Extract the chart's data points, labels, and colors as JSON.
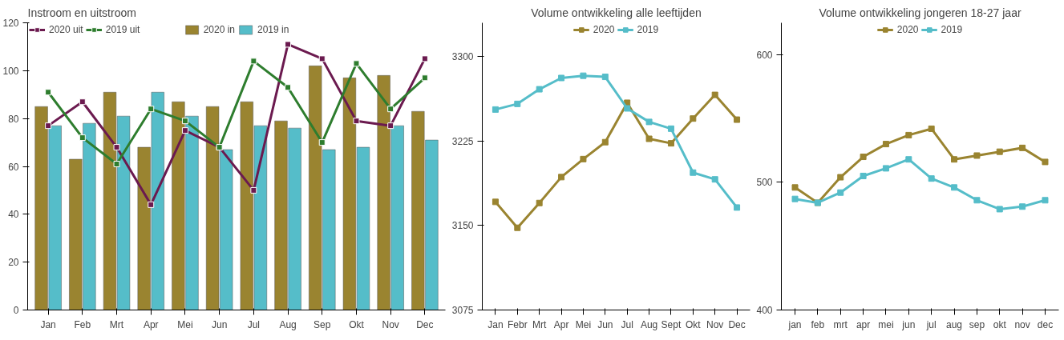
{
  "chart_data": [
    {
      "type": "bar",
      "title": "Instroom en uitstroom",
      "categories": [
        "Jan",
        "Feb",
        "Mrt",
        "Apr",
        "Mei",
        "Jun",
        "Jul",
        "Aug",
        "Sep",
        "Okt",
        "Nov",
        "Dec"
      ],
      "ylim": [
        0,
        120
      ],
      "yticks": [
        0,
        20,
        40,
        60,
        80,
        100,
        120
      ],
      "grid": false,
      "legend": "top",
      "marker": "square",
      "series": [
        {
          "name": "2020 in",
          "type": "bar",
          "color": "#9a8430",
          "values": [
            85,
            63,
            91,
            68,
            87,
            85,
            87,
            79,
            102,
            97,
            98,
            83
          ]
        },
        {
          "name": "2019 in",
          "type": "bar",
          "color": "#55bdc9",
          "values": [
            77,
            78,
            81,
            91,
            81,
            67,
            77,
            76,
            67,
            68,
            77,
            71
          ]
        },
        {
          "name": "2020 uit",
          "type": "line",
          "color": "#6b1a4f",
          "values": [
            77,
            87,
            68,
            44,
            75,
            68,
            50,
            111,
            105,
            79,
            77,
            105
          ]
        },
        {
          "name": "2019 uit",
          "type": "line",
          "color": "#2e7d2e",
          "values": [
            91,
            72,
            61,
            84,
            79,
            68,
            104,
            93,
            70,
            103,
            84,
            97
          ]
        }
      ]
    },
    {
      "type": "line",
      "title": "Volume ontwikkeling alle leeftijden",
      "categories": [
        "Jan",
        "Febr",
        "Mrt",
        "Apr",
        "Mei",
        "Jun",
        "Jul",
        "Aug",
        "Sept",
        "Okt",
        "Nov",
        "Dec"
      ],
      "ylim": [
        3075,
        3330
      ],
      "yticks": [
        3075,
        3150,
        3225,
        3300
      ],
      "grid": false,
      "legend": "top",
      "marker": "square",
      "series": [
        {
          "name": "2020",
          "color": "#9a8430",
          "values": [
            3171,
            3148,
            3170,
            3193,
            3209,
            3224,
            3259,
            3227,
            3223,
            3245,
            3266,
            3244
          ]
        },
        {
          "name": "2019",
          "color": "#55bdc9",
          "values": [
            3253,
            3258,
            3271,
            3281,
            3283,
            3282,
            3254,
            3242,
            3236,
            3197,
            3191,
            3166
          ]
        }
      ]
    },
    {
      "type": "line",
      "title": "Volume ontwikkeling jongeren 18-27 jaar",
      "categories": [
        "jan",
        "feb",
        "mrt",
        "apr",
        "mei",
        "jun",
        "jul",
        "aug",
        "sep",
        "okt",
        "nov",
        "dec"
      ],
      "ylim": [
        400,
        625
      ],
      "yticks": [
        400,
        500,
        600
      ],
      "grid": false,
      "legend": "top",
      "marker": "square",
      "series": [
        {
          "name": "2020",
          "color": "#9a8430",
          "values": [
            496,
            484,
            504,
            520,
            530,
            537,
            542,
            518,
            521,
            524,
            527,
            516
          ]
        },
        {
          "name": "2019",
          "color": "#55bdc9",
          "values": [
            487,
            484,
            492,
            505,
            511,
            518,
            503,
            496,
            486,
            479,
            481,
            486
          ]
        }
      ]
    }
  ]
}
